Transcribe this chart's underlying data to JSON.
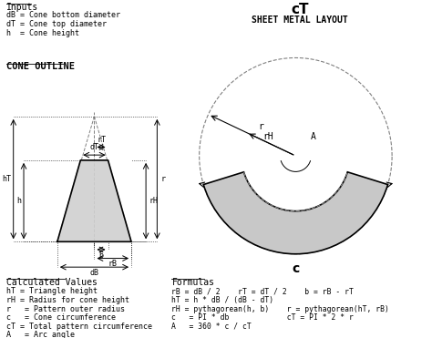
{
  "bg_color": "#ffffff",
  "title_inputs": "Inputs",
  "inputs": [
    "dB = Cone bottom diameter",
    "dT = Cone top diameter",
    "h  = Cone height"
  ],
  "cone_outline_title": "CONE OUTLINE",
  "sheet_metal_title": "SHEET METAL LAYOUT",
  "ct_label": "cT",
  "c_label": "c",
  "calc_title": "Calculated Values",
  "calc_items": [
    "hT = Triangle height",
    "rH = Radius for cone height",
    "r   = Pattern outer radius",
    "c   = Cone circumference",
    "cT = Total pattern circumference",
    "A   = Arc angle"
  ],
  "formulas_title": "Formulas",
  "formulas": [
    "rB = dB / 2    rT = dT / 2    b = rB - rT",
    "hT = h * dB / (dB - dT)",
    "rH = pythagorean(h, b)    r = pythagorean(hT, rB)",
    "c   = PI * db             cT = PI * 2 * r",
    "A   = 360 * c / cT"
  ],
  "cone_fill": "#d0d0d0",
  "cone_stroke": "#000000",
  "arc_fill": "#c8c8c8",
  "arc_stroke": "#000000",
  "outer_circle_color": "#888888",
  "dashed_color": "#555555"
}
